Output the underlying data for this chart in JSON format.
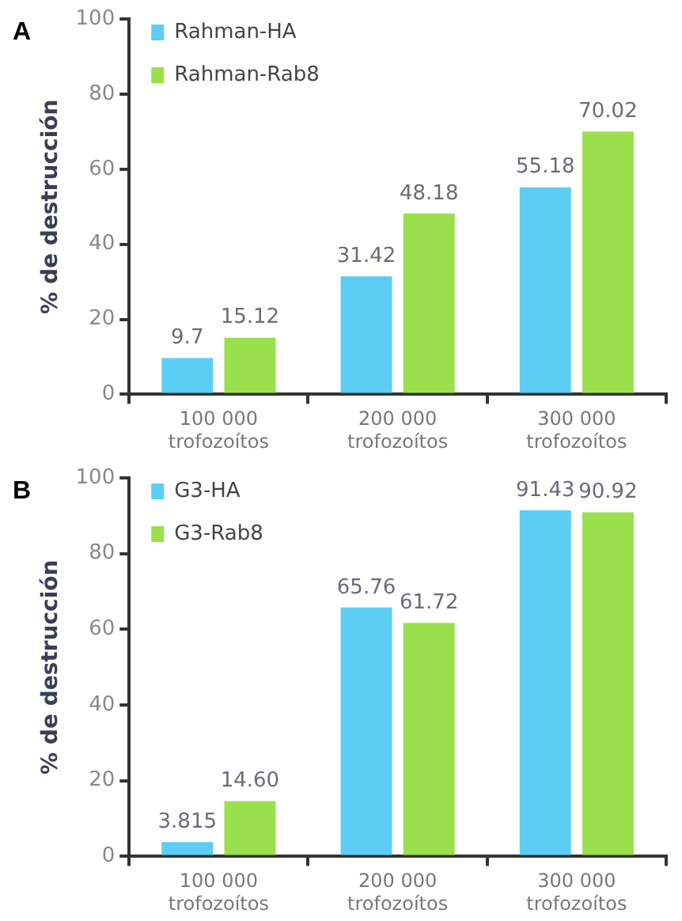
{
  "chart_data": [
    {
      "type": "bar",
      "title": "A",
      "ylabel": "% de destrucción",
      "categories": [
        "100 000 trofozoítos",
        "200 000 trofozoítos",
        "300 000 trofozoítos"
      ],
      "series": [
        {
          "name": "Rahman-HA",
          "color": "#5ccdf3",
          "values": [
            9.7,
            31.42,
            55.18
          ],
          "value_labels": [
            "9.7",
            "31.42",
            "55.18"
          ]
        },
        {
          "name": "Rahman-Rab8",
          "color": "#9ae04c",
          "values": [
            15.12,
            48.18,
            70.02
          ],
          "value_labels": [
            "15.12",
            "48.18",
            "70.02"
          ]
        }
      ],
      "ylim": [
        0,
        100
      ],
      "yticks": [
        0,
        20,
        40,
        60,
        80,
        100
      ],
      "grid": false,
      "legend": "top left"
    },
    {
      "type": "bar",
      "title": "B",
      "ylabel": "% de destrucción",
      "categories": [
        "100 000 trofozoítos",
        "200 000 trofozoítos",
        "300 000 trofozoítos"
      ],
      "series": [
        {
          "name": "G3-HA",
          "color": "#5ccdf3",
          "values": [
            3.815,
            65.76,
            91.43
          ],
          "value_labels": [
            "3.815",
            "65.76",
            "91.43"
          ]
        },
        {
          "name": "G3-Rab8",
          "color": "#9ae04c",
          "values": [
            14.6,
            61.72,
            90.92
          ],
          "value_labels": [
            "14.60",
            "61.72",
            "90.92"
          ]
        }
      ],
      "ylim": [
        0,
        100
      ],
      "yticks": [
        0,
        20,
        40,
        60,
        80,
        100
      ],
      "grid": false,
      "legend": "top left"
    }
  ]
}
